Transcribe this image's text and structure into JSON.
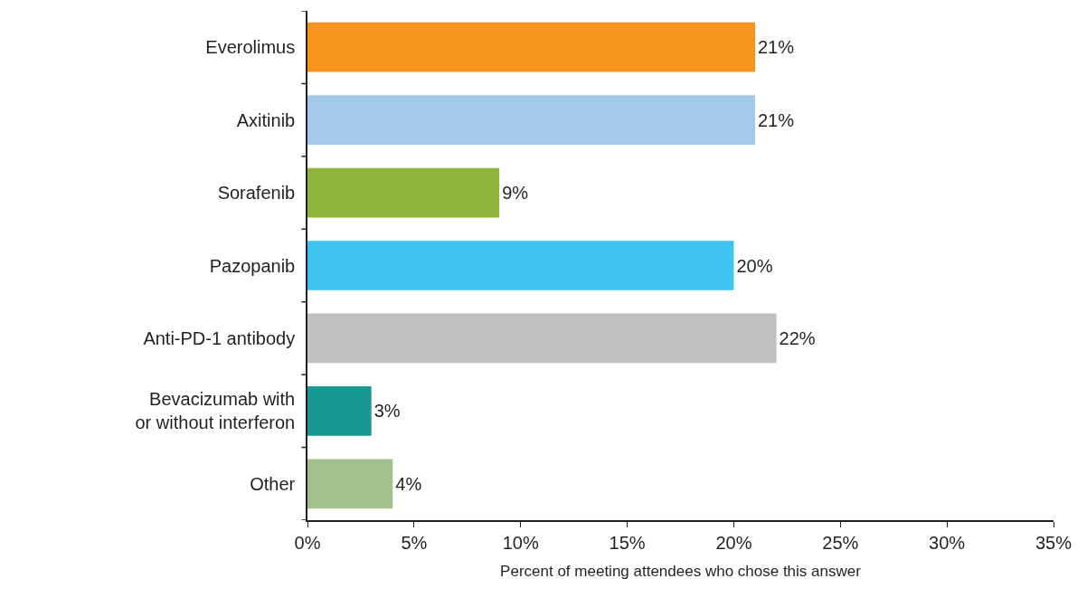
{
  "chart_data": {
    "type": "bar",
    "orientation": "horizontal",
    "categories": [
      "Everolimus",
      "Axitinib",
      "Sorafenib",
      "Pazopanib",
      "Anti-PD-1 antibody",
      "Bevacizumab with\nor without interferon",
      "Other"
    ],
    "values": [
      21,
      21,
      9,
      20,
      22,
      3,
      4
    ],
    "colors": [
      "#f7941d",
      "#a3c8ea",
      "#8fb43c",
      "#40c3ee",
      "#c0c0c0",
      "#1a9893",
      "#a2c18f"
    ],
    "value_labels": [
      "21%",
      "21%",
      "9%",
      "20%",
      "22%",
      "3%",
      "4%"
    ],
    "xlabel": "Percent of meeting attendees who chose this answer",
    "xlim": [
      0,
      35
    ],
    "xticks": [
      {
        "value": 0,
        "label": "0%"
      },
      {
        "value": 5,
        "label": "5%"
      },
      {
        "value": 10,
        "label": "10%"
      },
      {
        "value": 15,
        "label": "15%"
      },
      {
        "value": 20,
        "label": "20%"
      },
      {
        "value": 25,
        "label": "25%"
      },
      {
        "value": 30,
        "label": "30%"
      },
      {
        "value": 35,
        "label": "35%"
      }
    ]
  }
}
